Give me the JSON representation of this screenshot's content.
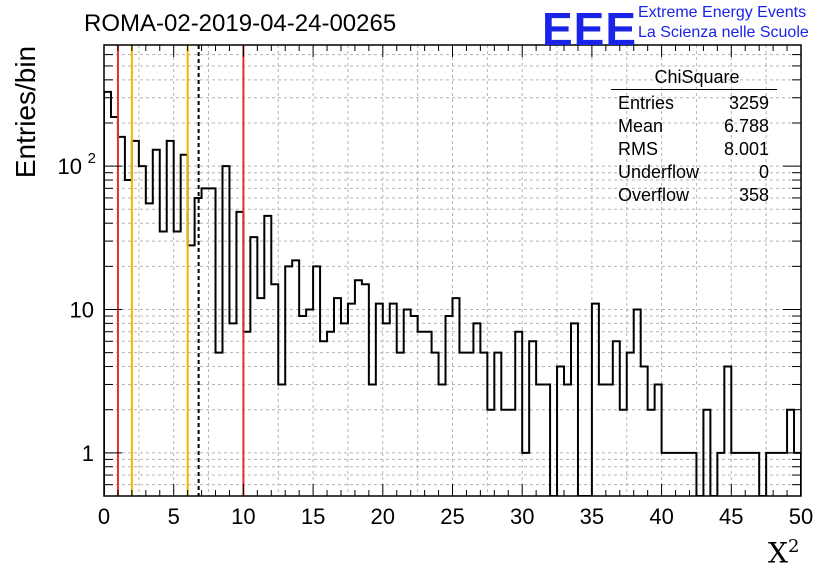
{
  "title": "ROMA-02-2019-04-24-00265",
  "logo": {
    "mark": "EEE",
    "line1": "Extreme Energy Events",
    "line2": "La Scienza nelle Scuole",
    "color": "#1a24e8"
  },
  "stats": {
    "title": "ChiSquare",
    "rows": [
      {
        "label": "Entries",
        "value": "3259"
      },
      {
        "label": "Mean",
        "value": "6.788"
      },
      {
        "label": "RMS",
        "value": "8.001"
      },
      {
        "label": "Underflow",
        "value": "0"
      },
      {
        "label": "Overflow",
        "value": "358"
      }
    ]
  },
  "chart_data": {
    "type": "bar",
    "histogram": true,
    "ylog": true,
    "xlabel": "X",
    "xlabel_sup": "2",
    "ylabel": "Entries/bin",
    "xlim": [
      0,
      50
    ],
    "ylim": [
      0.5,
      700
    ],
    "xticks": [
      0,
      5,
      10,
      15,
      20,
      25,
      30,
      35,
      40,
      45,
      50
    ],
    "yticks": [
      {
        "value": 1,
        "label": "1"
      },
      {
        "value": 10,
        "label": "10"
      },
      {
        "value": 100,
        "label": "10",
        "sup": "2"
      }
    ],
    "grid": true,
    "bin_width": 0.5,
    "bin_start": 0,
    "values": [
      330,
      220,
      160,
      80,
      150,
      100,
      55,
      130,
      35,
      150,
      35,
      120,
      28,
      60,
      70,
      70,
      5,
      100,
      8,
      48,
      7,
      32,
      12,
      45,
      15,
      3,
      20,
      22,
      9,
      10,
      20,
      6,
      7,
      12,
      8,
      11,
      16,
      15,
      3,
      11,
      8,
      11,
      5,
      10,
      9,
      7,
      7,
      5,
      3,
      9,
      12,
      5,
      5,
      8,
      5,
      2,
      5,
      2,
      2,
      7,
      1,
      6,
      3,
      3,
      0,
      4,
      3,
      8,
      0,
      0,
      11,
      3,
      3,
      6,
      2,
      5,
      10,
      4,
      2,
      3,
      1,
      1,
      1,
      1,
      1,
      0,
      2,
      0,
      1,
      4,
      1,
      1,
      1,
      1,
      0,
      1,
      1,
      1,
      2,
      1,
      0,
      1,
      1,
      1,
      1,
      1,
      2,
      1,
      1,
      1,
      1,
      1,
      0,
      1,
      1,
      2,
      1,
      1,
      2,
      1,
      1,
      2,
      1,
      1,
      1,
      1,
      1,
      2,
      1,
      1,
      1,
      0,
      1,
      1,
      1,
      0,
      1,
      1,
      1,
      1,
      3,
      3
    ],
    "vlines": [
      {
        "x": 1,
        "color": "#e03030",
        "style": "solid"
      },
      {
        "x": 2,
        "color": "#f2b400",
        "style": "solid"
      },
      {
        "x": 6,
        "color": "#f2b400",
        "style": "solid"
      },
      {
        "x": 6.788,
        "color": "#000000",
        "style": "dashed"
      },
      {
        "x": 10,
        "color": "#e03030",
        "style": "solid"
      }
    ]
  }
}
